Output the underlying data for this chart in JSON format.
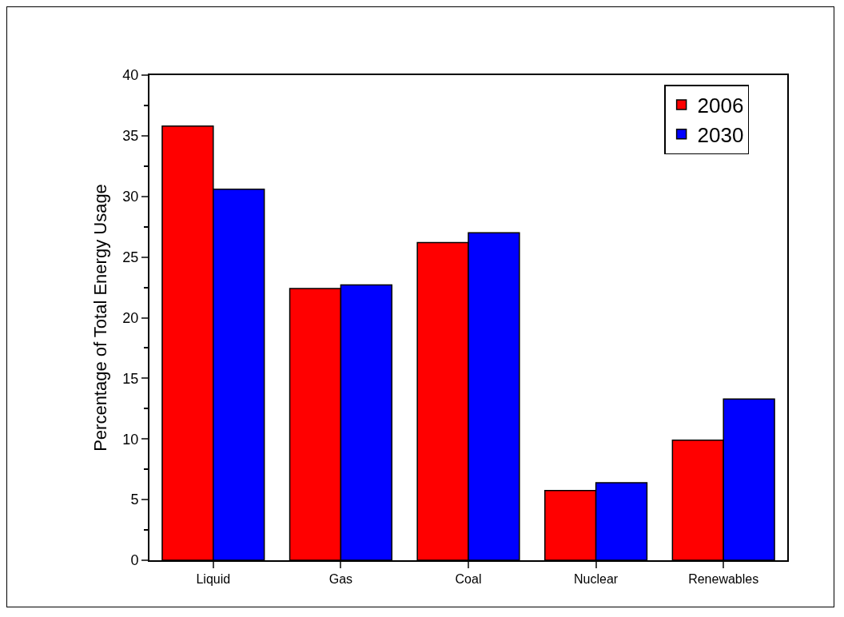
{
  "chart_data": {
    "type": "bar",
    "ylabel": "Percentage of Total Energy Usage",
    "categories": [
      "Liquid",
      "Gas",
      "Coal",
      "Nuclear",
      "Renewables"
    ],
    "series": [
      {
        "name": "2006",
        "color": "#ff0000",
        "values": [
          35.8,
          22.4,
          26.2,
          5.75,
          9.9
        ]
      },
      {
        "name": "2030",
        "color": "#0000ff",
        "values": [
          30.6,
          22.7,
          27.0,
          6.4,
          13.3
        ]
      }
    ],
    "ylim": [
      0,
      40
    ],
    "yticks": [
      0,
      {
        "value": 2.5,
        "label": null
      },
      5,
      {
        "value": 7.5,
        "label": null
      },
      10,
      {
        "value": 12.5,
        "label": null
      },
      15,
      {
        "value": 17.5,
        "label": null
      },
      20,
      {
        "value": 22.5,
        "label": null
      },
      25,
      {
        "value": 27.5,
        "label": null
      },
      30,
      {
        "value": 32.5,
        "label": null
      },
      35,
      {
        "value": 37.5,
        "label": null
      },
      40
    ],
    "grid": false,
    "legend": "top right"
  }
}
